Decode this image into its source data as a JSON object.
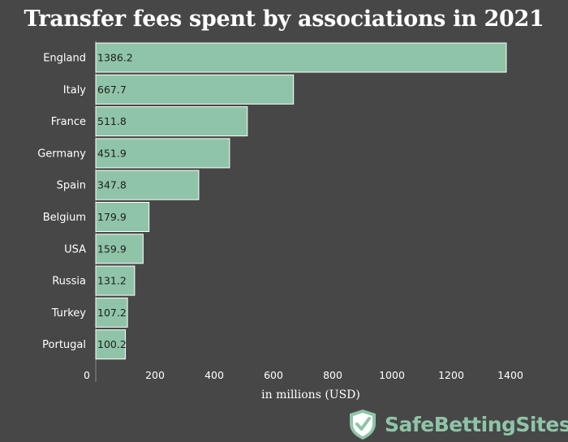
{
  "chart_data": {
    "type": "bar",
    "orientation": "horizontal",
    "title": "Transfer fees spent by associations in 2021",
    "xlabel": "in millions (USD)",
    "ylabel": "",
    "categories": [
      "England",
      "Italy",
      "France",
      "Germany",
      "Spain",
      "Belgium",
      "USA",
      "Russia",
      "Turkey",
      "Portugal"
    ],
    "values": [
      1386.2,
      667.7,
      511.8,
      451.9,
      347.8,
      179.9,
      159.9,
      131.2,
      107.2,
      100.2
    ],
    "value_labels": [
      "1386.2",
      "667.7",
      "511.8",
      "451.9",
      "347.8",
      "179.9",
      "159.9",
      "131.2",
      "107.2",
      "100.2"
    ],
    "xticks": [
      "0",
      "200",
      "400",
      "600",
      "800",
      "1000",
      "1200",
      "1400"
    ],
    "xlim": [
      0,
      1400
    ],
    "grid": false,
    "legend": "none",
    "colors": {
      "background": "#474747",
      "bar": "#8fc4a8",
      "bar_edge": "#ffffff",
      "text": "#ffffff",
      "value_text": "#1e1e1e"
    }
  },
  "branding": {
    "logo_text": "SafeBettingSites",
    "logo_icon": "shield-check-icon",
    "color": "#8fc4a8"
  }
}
